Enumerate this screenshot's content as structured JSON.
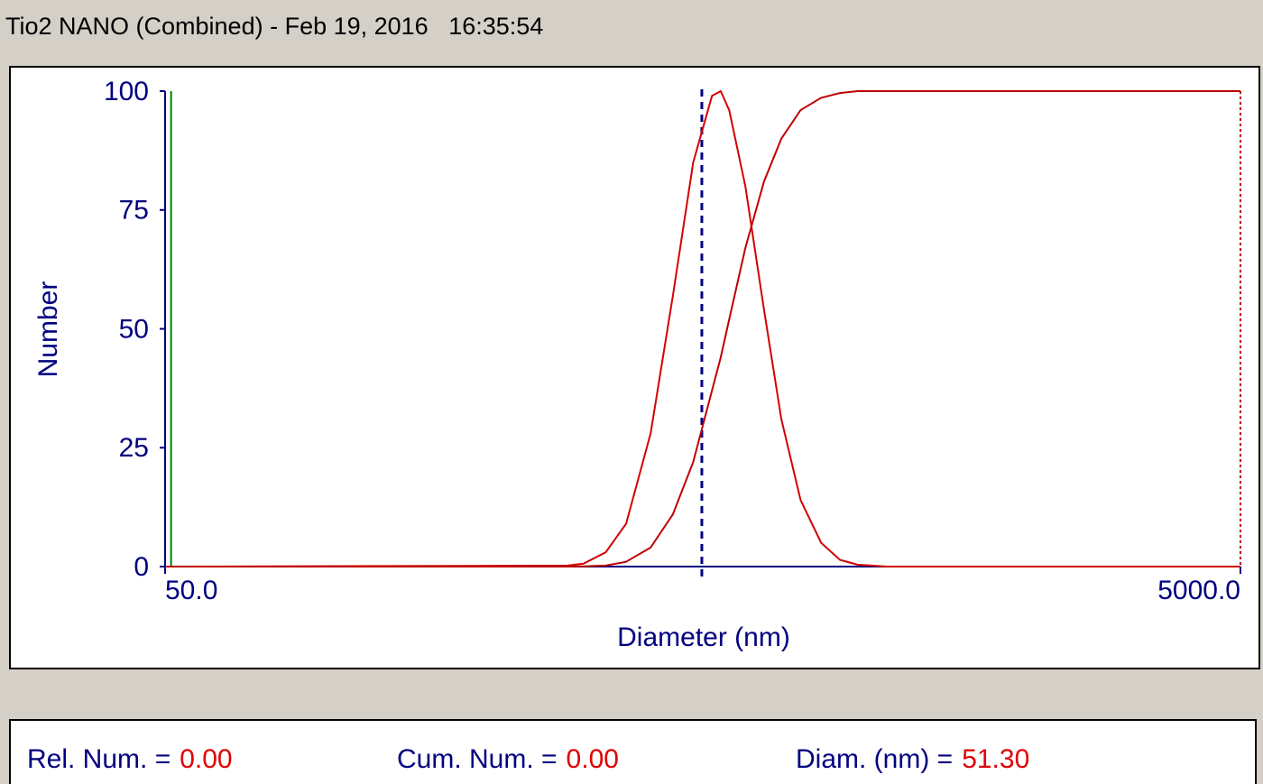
{
  "window_title": "Tio2 NANO (Combined) - Feb 19, 2016   16:35:54",
  "chart_data": {
    "type": "line",
    "ylabel": "Number",
    "xlabel": "Diameter (nm)",
    "x": [
      50,
      280,
      300,
      330,
      360,
      400,
      440,
      480,
      520,
      540,
      560,
      600,
      650,
      700,
      760,
      830,
      900,
      970,
      1100,
      5000
    ],
    "series": [
      {
        "color": "#d40000",
        "values": [
          0,
          0.2,
          0.6,
          3,
          9,
          28,
          57,
          85,
          99,
          100,
          96,
          80,
          54,
          31,
          14,
          5,
          1.4,
          0.4,
          0,
          0
        ]
      },
      {
        "color": "#c00000",
        "values": [
          0,
          0,
          0.05,
          0.2,
          1,
          4,
          11,
          22,
          37,
          44,
          52,
          67,
          81,
          90,
          96,
          98.6,
          99.6,
          100,
          100,
          100
        ]
      }
    ],
    "xscale": "log",
    "xlim": [
      50,
      5000
    ],
    "xticks": [
      {
        "value": 50,
        "label": "50.0"
      },
      {
        "value": 5000,
        "label": "5000.0"
      }
    ],
    "ylim": [
      0,
      100
    ],
    "yticks": [
      0,
      25,
      50,
      75,
      100
    ],
    "reference_x": 498
  },
  "footer": [
    {
      "label": "Rel. Num. =",
      "value": "0.00"
    },
    {
      "label": "Cum. Num. =",
      "value": "0.00"
    },
    {
      "label": "Diam. (nm) =",
      "value": "51.30"
    }
  ]
}
